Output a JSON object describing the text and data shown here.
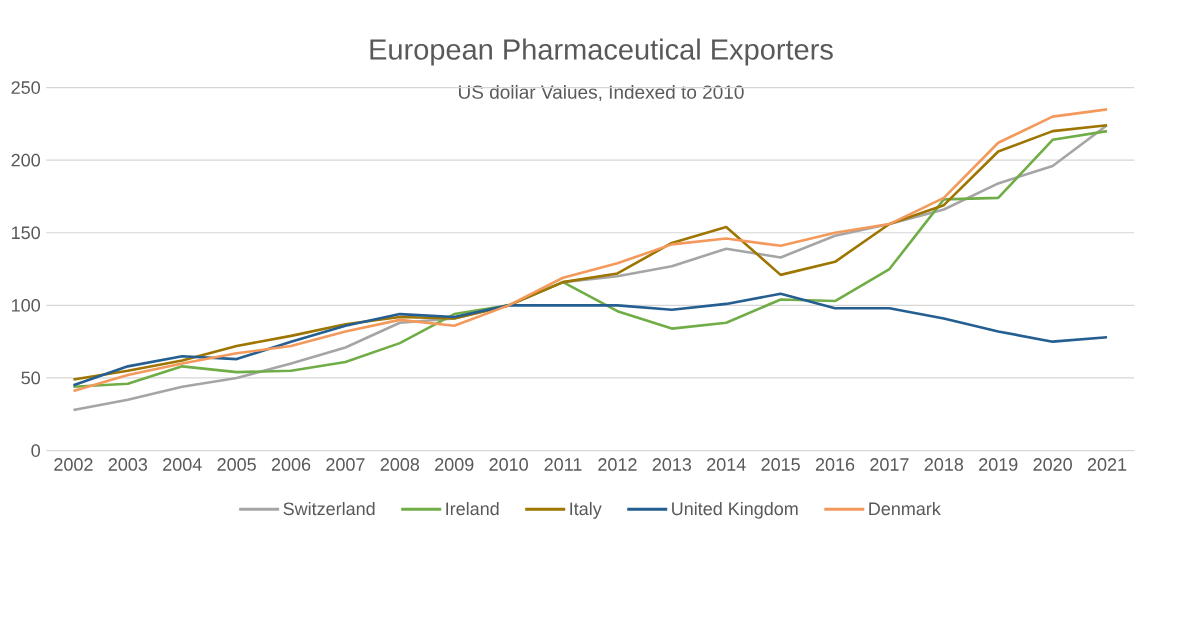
{
  "chart_data": {
    "type": "line",
    "title": "European Pharmaceutical Exporters",
    "subtitle": "US dollar Values, Indexed to 2010",
    "categories": [
      "2002",
      "2003",
      "2004",
      "2005",
      "2006",
      "2007",
      "2008",
      "2009",
      "2010",
      "2011",
      "2012",
      "2013",
      "2014",
      "2015",
      "2016",
      "2017",
      "2018",
      "2019",
      "2020",
      "2021"
    ],
    "series": [
      {
        "name": "Switzerland",
        "color": "#a5a5a5",
        "values": [
          28,
          35,
          44,
          50,
          60,
          71,
          88,
          91,
          100,
          116,
          120,
          127,
          139,
          133,
          148,
          156,
          166,
          184,
          196,
          224
        ]
      },
      {
        "name": "Ireland",
        "color": "#70ad47",
        "values": [
          44,
          46,
          58,
          54,
          55,
          61,
          74,
          94,
          100,
          116,
          96,
          84,
          88,
          104,
          103,
          125,
          173,
          174,
          214,
          220
        ]
      },
      {
        "name": "Italy",
        "color": "#9e7500",
        "values": [
          49,
          55,
          62,
          72,
          79,
          87,
          92,
          91,
          100,
          116,
          122,
          143,
          154,
          121,
          130,
          156,
          169,
          206,
          220,
          224
        ]
      },
      {
        "name": "United Kingdom",
        "color": "#255e91",
        "values": [
          45,
          58,
          65,
          63,
          75,
          86,
          94,
          92,
          100,
          100,
          100,
          97,
          101,
          108,
          98,
          98,
          91,
          82,
          75,
          78
        ]
      },
      {
        "name": "Denmark",
        "color": "#f4995c",
        "values": [
          41,
          52,
          60,
          67,
          72,
          82,
          90,
          86,
          100,
          119,
          129,
          142,
          146,
          141,
          150,
          156,
          174,
          212,
          230,
          235
        ]
      }
    ],
    "ylim": [
      0,
      250
    ],
    "yticks": [
      0,
      50,
      100,
      150,
      200,
      250
    ],
    "grid": "y",
    "legend": "bottom",
    "line_style": "solid"
  }
}
